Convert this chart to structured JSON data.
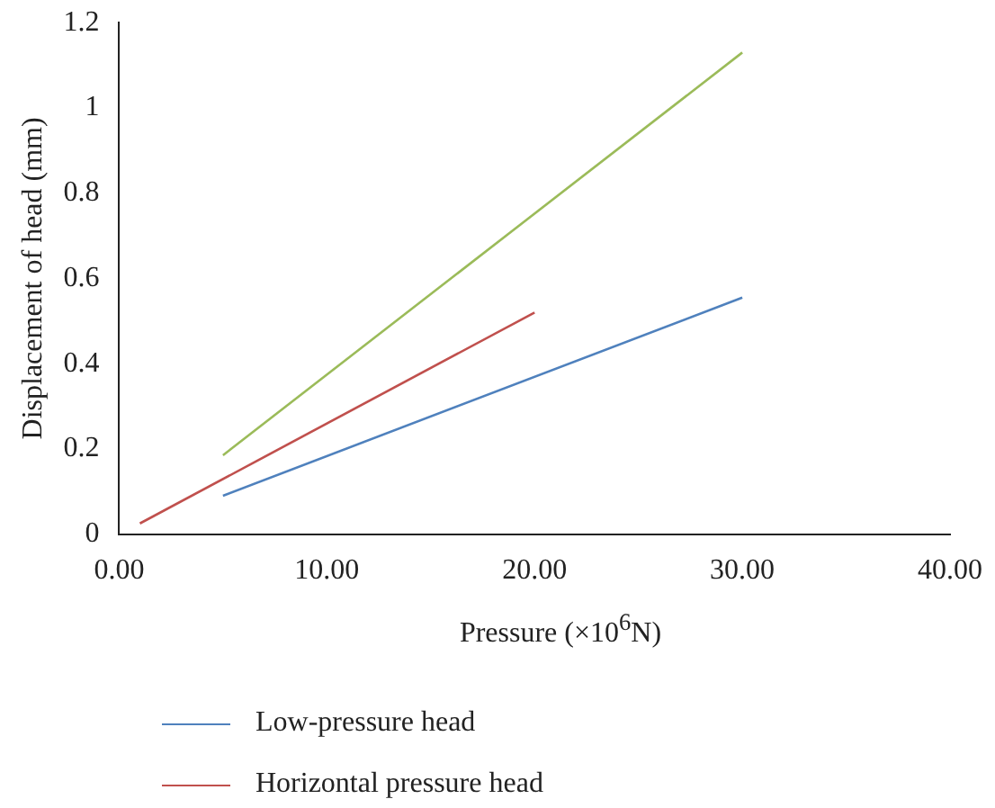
{
  "chart_data": {
    "type": "line",
    "xlabel": "Pressure (×10$^{6}$N)",
    "ylabel": "Displacement of head (mm)",
    "xlim": [
      0,
      40
    ],
    "xticks": [
      {
        "value": 0,
        "label": "0.00"
      },
      {
        "value": 10,
        "label": "10.00"
      },
      {
        "value": 20,
        "label": "20.00"
      },
      {
        "value": 30,
        "label": "30.00"
      },
      {
        "value": 40,
        "label": "40.00"
      }
    ],
    "ylim": [
      0,
      1.2
    ],
    "yticks": [
      0,
      0.2,
      0.4,
      0.6,
      0.8,
      1,
      1.2
    ],
    "grid": false,
    "legend": "bottom",
    "marker": "none",
    "series": [
      {
        "name": "Low-pressure head",
        "color": "#4f81bd",
        "x": [
          5,
          30
        ],
        "values": [
          0.09,
          0.555
        ]
      },
      {
        "name": "Horizontal pressure head",
        "color": "#c0504d",
        "x": [
          1,
          20
        ],
        "values": [
          0.025,
          0.52
        ]
      },
      {
        "color": "#9bbb59",
        "x": [
          5,
          30
        ],
        "values": [
          0.185,
          1.13
        ]
      }
    ]
  }
}
